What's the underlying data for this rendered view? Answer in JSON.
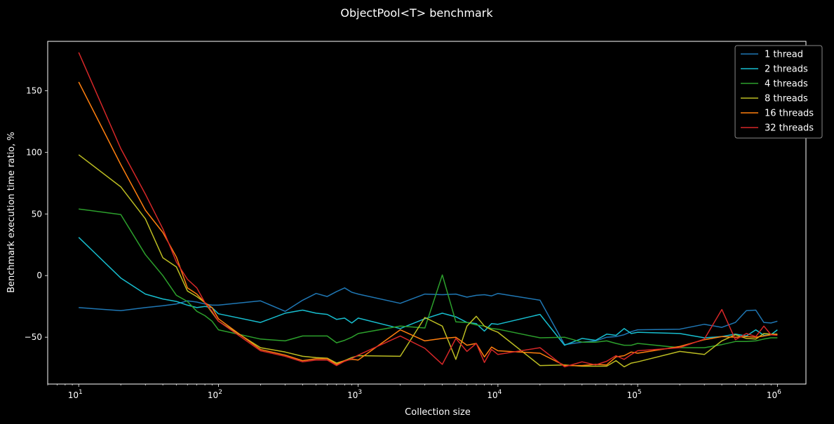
{
  "chart_data": {
    "type": "line",
    "title": "ObjectPool<T> benchmark",
    "xlabel": "Collection size",
    "ylabel": "Benchmark execution time ratio, %",
    "xscale": "log",
    "xlim": [
      6,
      1600000
    ],
    "ylim": [
      -88,
      190
    ],
    "x_ticks": [
      10,
      100,
      1000,
      10000,
      100000,
      1000000
    ],
    "x_tick_labels": [
      {
        "base": "10",
        "exp": "1"
      },
      {
        "base": "10",
        "exp": "2"
      },
      {
        "base": "10",
        "exp": "3"
      },
      {
        "base": "10",
        "exp": "4"
      },
      {
        "base": "10",
        "exp": "5"
      },
      {
        "base": "10",
        "exp": "6"
      }
    ],
    "y_ticks": [
      -50,
      0,
      50,
      100,
      150
    ],
    "y_tick_labels": [
      "−50",
      "0",
      "50",
      "100",
      "150"
    ],
    "grid": false,
    "legend_position": "top-right",
    "colors": {
      "background": "#000000",
      "foreground": "#ffffff"
    },
    "series": [
      {
        "name": "1 thread",
        "color": "#1f77b4",
        "points": [
          [
            10,
            -26
          ],
          [
            20,
            -28.5
          ],
          [
            30,
            -26
          ],
          [
            40,
            -24.5
          ],
          [
            50,
            -23
          ],
          [
            60,
            -20.5
          ],
          [
            70,
            -21.5
          ],
          [
            80,
            -23
          ],
          [
            90,
            -24
          ],
          [
            100,
            -24
          ],
          [
            200,
            -20.5
          ],
          [
            300,
            -29
          ],
          [
            400,
            -20
          ],
          [
            500,
            -14.5
          ],
          [
            600,
            -17
          ],
          [
            700,
            -13
          ],
          [
            800,
            -10
          ],
          [
            900,
            -13.5
          ],
          [
            1000,
            -15
          ],
          [
            2000,
            -22.5
          ],
          [
            3000,
            -15
          ],
          [
            4000,
            -15.5
          ],
          [
            5000,
            -15
          ],
          [
            6000,
            -17.5
          ],
          [
            7000,
            -16
          ],
          [
            8000,
            -15.5
          ],
          [
            9000,
            -16.5
          ],
          [
            10000,
            -14.5
          ],
          [
            20000,
            -20
          ],
          [
            30000,
            -56
          ],
          [
            40000,
            -54
          ],
          [
            50000,
            -53
          ],
          [
            60000,
            -50
          ],
          [
            70000,
            -49.5
          ],
          [
            80000,
            -48
          ],
          [
            90000,
            -45.5
          ],
          [
            100000,
            -44
          ],
          [
            200000,
            -43.5
          ],
          [
            300000,
            -39.5
          ],
          [
            400000,
            -42
          ],
          [
            500000,
            -38
          ],
          [
            600000,
            -28.5
          ],
          [
            700000,
            -28
          ],
          [
            800000,
            -38
          ],
          [
            900000,
            -38.5
          ],
          [
            1000000,
            -37
          ]
        ]
      },
      {
        "name": "2 threads",
        "color": "#17becf",
        "points": [
          [
            10,
            31
          ],
          [
            20,
            -2
          ],
          [
            30,
            -15
          ],
          [
            40,
            -19
          ],
          [
            50,
            -21
          ],
          [
            60,
            -24
          ],
          [
            70,
            -26
          ],
          [
            80,
            -25
          ],
          [
            90,
            -26
          ],
          [
            100,
            -31
          ],
          [
            200,
            -38
          ],
          [
            300,
            -30.5
          ],
          [
            400,
            -28
          ],
          [
            500,
            -30.5
          ],
          [
            600,
            -31.5
          ],
          [
            700,
            -35.5
          ],
          [
            800,
            -34.5
          ],
          [
            900,
            -38.5
          ],
          [
            1000,
            -34.5
          ],
          [
            2000,
            -43
          ],
          [
            3000,
            -35
          ],
          [
            4000,
            -30.5
          ],
          [
            5000,
            -33.5
          ],
          [
            6000,
            -38
          ],
          [
            7000,
            -39
          ],
          [
            8000,
            -45
          ],
          [
            9000,
            -39
          ],
          [
            10000,
            -39.5
          ],
          [
            20000,
            -31.5
          ],
          [
            30000,
            -56.5
          ],
          [
            40000,
            -51
          ],
          [
            50000,
            -52.5
          ],
          [
            60000,
            -47.5
          ],
          [
            70000,
            -48.5
          ],
          [
            80000,
            -43
          ],
          [
            90000,
            -47
          ],
          [
            100000,
            -46
          ],
          [
            200000,
            -47
          ],
          [
            300000,
            -50.5
          ],
          [
            400000,
            -49.5
          ],
          [
            500000,
            -47.5
          ],
          [
            600000,
            -49
          ],
          [
            700000,
            -44
          ],
          [
            800000,
            -48.5
          ],
          [
            900000,
            -48
          ],
          [
            1000000,
            -44
          ]
        ]
      },
      {
        "name": "4 threads",
        "color": "#2ca02c",
        "points": [
          [
            10,
            54
          ],
          [
            20,
            49.5
          ],
          [
            30,
            17
          ],
          [
            40,
            0
          ],
          [
            50,
            -16
          ],
          [
            60,
            -21
          ],
          [
            70,
            -29
          ],
          [
            80,
            -32.5
          ],
          [
            90,
            -37
          ],
          [
            100,
            -44
          ],
          [
            200,
            -51.5
          ],
          [
            300,
            -53
          ],
          [
            400,
            -49
          ],
          [
            500,
            -49
          ],
          [
            600,
            -49
          ],
          [
            700,
            -54.5
          ],
          [
            800,
            -52.5
          ],
          [
            900,
            -50
          ],
          [
            1000,
            -47
          ],
          [
            2000,
            -41
          ],
          [
            3000,
            -42.5
          ],
          [
            4000,
            0.5
          ],
          [
            5000,
            -37.5
          ],
          [
            6000,
            -38
          ],
          [
            7000,
            -40
          ],
          [
            8000,
            -41
          ],
          [
            9000,
            -43
          ],
          [
            10000,
            -43.5
          ],
          [
            20000,
            -50.5
          ],
          [
            30000,
            -50
          ],
          [
            40000,
            -54
          ],
          [
            50000,
            -54
          ],
          [
            60000,
            -53
          ],
          [
            70000,
            -55
          ],
          [
            80000,
            -56.5
          ],
          [
            90000,
            -56.5
          ],
          [
            100000,
            -55
          ],
          [
            200000,
            -58.5
          ],
          [
            300000,
            -58.5
          ],
          [
            400000,
            -56
          ],
          [
            500000,
            -53.5
          ],
          [
            600000,
            -53.5
          ],
          [
            700000,
            -53
          ],
          [
            800000,
            -51.5
          ],
          [
            900000,
            -50.5
          ],
          [
            1000000,
            -50.5
          ]
        ]
      },
      {
        "name": "8 threads",
        "color": "#bcbd22",
        "points": [
          [
            10,
            98
          ],
          [
            20,
            72
          ],
          [
            30,
            46
          ],
          [
            40,
            14.5
          ],
          [
            50,
            7
          ],
          [
            60,
            -12.5
          ],
          [
            70,
            -17
          ],
          [
            80,
            -22
          ],
          [
            90,
            -30
          ],
          [
            100,
            -37
          ],
          [
            200,
            -58.5
          ],
          [
            300,
            -62
          ],
          [
            400,
            -65.5
          ],
          [
            500,
            -66.5
          ],
          [
            600,
            -67
          ],
          [
            700,
            -71
          ],
          [
            800,
            -69
          ],
          [
            900,
            -66.5
          ],
          [
            1000,
            -65
          ],
          [
            2000,
            -65.5
          ],
          [
            3000,
            -34
          ],
          [
            4000,
            -41
          ],
          [
            5000,
            -68
          ],
          [
            6000,
            -41
          ],
          [
            7000,
            -33
          ],
          [
            8000,
            -41
          ],
          [
            9000,
            -44
          ],
          [
            10000,
            -46
          ],
          [
            20000,
            -73
          ],
          [
            30000,
            -72.5
          ],
          [
            40000,
            -73.5
          ],
          [
            50000,
            -73.5
          ],
          [
            60000,
            -73.5
          ],
          [
            70000,
            -69
          ],
          [
            80000,
            -74
          ],
          [
            90000,
            -71
          ],
          [
            100000,
            -70
          ],
          [
            200000,
            -61.5
          ],
          [
            300000,
            -64
          ],
          [
            400000,
            -53
          ],
          [
            500000,
            -48
          ],
          [
            600000,
            -51
          ],
          [
            700000,
            -51.5
          ],
          [
            800000,
            -47
          ],
          [
            900000,
            -47.5
          ],
          [
            1000000,
            -47.5
          ]
        ]
      },
      {
        "name": "16 threads",
        "color": "#ff7f0e",
        "points": [
          [
            10,
            157
          ],
          [
            20,
            90
          ],
          [
            30,
            53
          ],
          [
            40,
            35
          ],
          [
            50,
            15
          ],
          [
            60,
            -10
          ],
          [
            70,
            -15
          ],
          [
            80,
            -22
          ],
          [
            90,
            -26
          ],
          [
            100,
            -35
          ],
          [
            200,
            -60
          ],
          [
            300,
            -64.5
          ],
          [
            400,
            -69
          ],
          [
            500,
            -67.5
          ],
          [
            600,
            -67.5
          ],
          [
            700,
            -72
          ],
          [
            800,
            -69
          ],
          [
            900,
            -68
          ],
          [
            1000,
            -68.5
          ],
          [
            2000,
            -44
          ],
          [
            3000,
            -53
          ],
          [
            4000,
            -51
          ],
          [
            5000,
            -50
          ],
          [
            6000,
            -56.5
          ],
          [
            7000,
            -55
          ],
          [
            8000,
            -66
          ],
          [
            9000,
            -58
          ],
          [
            10000,
            -61
          ],
          [
            20000,
            -63
          ],
          [
            30000,
            -73
          ],
          [
            40000,
            -73
          ],
          [
            50000,
            -72
          ],
          [
            60000,
            -72.5
          ],
          [
            70000,
            -66
          ],
          [
            80000,
            -65
          ],
          [
            90000,
            -62
          ],
          [
            100000,
            -63
          ],
          [
            200000,
            -57.5
          ],
          [
            300000,
            -52
          ],
          [
            400000,
            -49.5
          ],
          [
            500000,
            -50
          ],
          [
            600000,
            -49.5
          ],
          [
            700000,
            -50
          ],
          [
            800000,
            -49
          ],
          [
            900000,
            -48
          ],
          [
            1000000,
            -48
          ]
        ]
      },
      {
        "name": "32 threads",
        "color": "#d62728",
        "points": [
          [
            10,
            181
          ],
          [
            20,
            103
          ],
          [
            30,
            66
          ],
          [
            40,
            38
          ],
          [
            50,
            11
          ],
          [
            60,
            -3
          ],
          [
            70,
            -10
          ],
          [
            80,
            -22
          ],
          [
            90,
            -29
          ],
          [
            100,
            -37
          ],
          [
            200,
            -61
          ],
          [
            300,
            -65.5
          ],
          [
            400,
            -70
          ],
          [
            500,
            -68.5
          ],
          [
            600,
            -68.5
          ],
          [
            700,
            -73
          ],
          [
            800,
            -69.5
          ],
          [
            900,
            -67.5
          ],
          [
            1000,
            -64.5
          ],
          [
            2000,
            -49
          ],
          [
            3000,
            -59
          ],
          [
            4000,
            -72
          ],
          [
            5000,
            -51
          ],
          [
            6000,
            -61.5
          ],
          [
            7000,
            -55
          ],
          [
            8000,
            -70.5
          ],
          [
            9000,
            -60
          ],
          [
            10000,
            -64
          ],
          [
            20000,
            -58.5
          ],
          [
            30000,
            -74
          ],
          [
            40000,
            -70
          ],
          [
            50000,
            -72.5
          ],
          [
            60000,
            -69.5
          ],
          [
            70000,
            -65
          ],
          [
            80000,
            -68
          ],
          [
            90000,
            -64
          ],
          [
            100000,
            -61
          ],
          [
            200000,
            -58.5
          ],
          [
            300000,
            -51.5
          ],
          [
            400000,
            -27.5
          ],
          [
            500000,
            -52
          ],
          [
            600000,
            -47
          ],
          [
            700000,
            -49.5
          ],
          [
            800000,
            -41
          ],
          [
            900000,
            -48
          ],
          [
            1000000,
            -48.5
          ]
        ]
      }
    ]
  }
}
